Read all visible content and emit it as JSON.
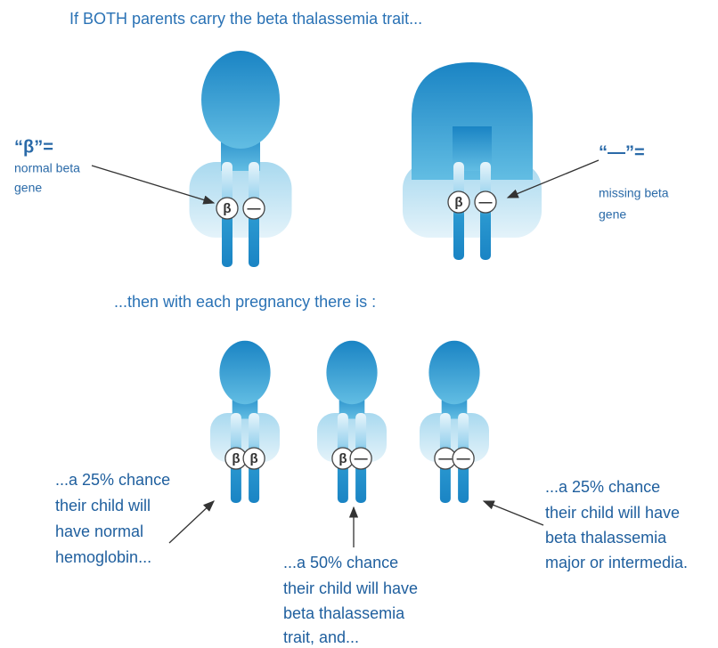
{
  "header": {
    "title": "If BOTH parents carry the beta thalassemia trait..."
  },
  "legend": [
    {
      "symbol": "“β”=",
      "lines": [
        "normal beta",
        "gene"
      ]
    },
    {
      "symbol": "“—”=",
      "lines": [
        "missing beta",
        "gene"
      ]
    }
  ],
  "parents": [
    {
      "alleles": [
        "β",
        "—"
      ]
    },
    {
      "alleles": [
        "β",
        "—"
      ]
    }
  ],
  "subtitle": "...then with each pregnancy there is :",
  "children": [
    {
      "alleles": [
        "β",
        "β"
      ],
      "caption": [
        "...a 25% chance",
        "their child will",
        "have normal",
        "hemoglobin..."
      ]
    },
    {
      "alleles": [
        "β",
        "—"
      ],
      "caption": [
        "...a 50% chance",
        "their child will have",
        "beta thalassemia",
        "trait, and..."
      ]
    },
    {
      "alleles": [
        "—",
        "—"
      ],
      "caption": [
        "...a 25% chance",
        "their child will have",
        "beta thalassemia",
        "major or intermedia."
      ]
    }
  ]
}
